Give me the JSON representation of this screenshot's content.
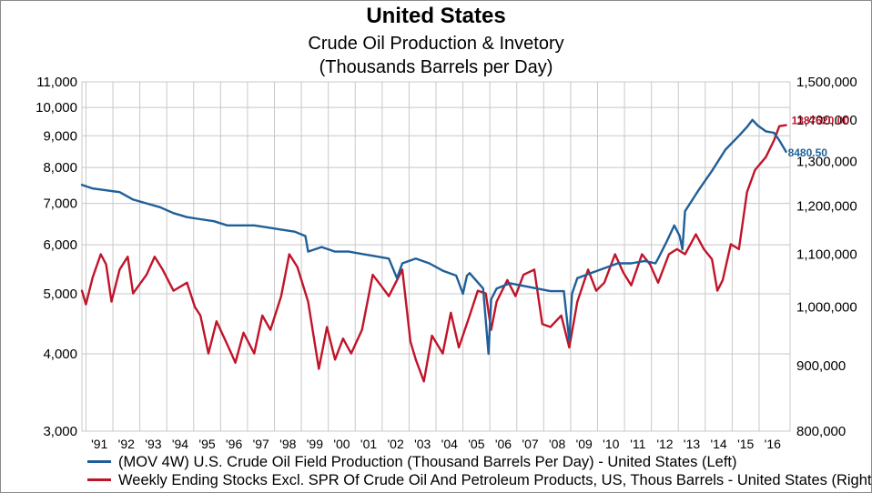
{
  "colors": {
    "production": "#1f5f99",
    "stocks": "#c0142a",
    "grid": "#c8c8c8",
    "axis": "#000000"
  },
  "chart_data": {
    "type": "line",
    "title": "United States",
    "subtitle_lines": [
      "Crude Oil Production & Invetory",
      "(Thousands Barrels per Day)"
    ],
    "grid": true,
    "legend_position": "bottom",
    "y_scale": "log",
    "y_left": {
      "range": [
        3000,
        11000
      ],
      "ticks": [
        3000,
        4000,
        5000,
        6000,
        7000,
        8000,
        9000,
        10000
      ],
      "tick_labels": [
        "3,000",
        "4,000",
        "5,000",
        "6,000",
        "7,000",
        "8,000",
        "9,000",
        "10,000"
      ],
      "top_label": "11,000"
    },
    "y_right": {
      "range": [
        800000,
        1500000
      ],
      "ticks": [
        800000,
        900000,
        1000000,
        1100000,
        1200000,
        1300000,
        1400000,
        1500000
      ],
      "tick_labels": [
        "800,000",
        "900,000",
        "1,000,000",
        "1,100,000",
        "1,200,000",
        "1,300,000",
        "1,400,000",
        "1,500,000"
      ]
    },
    "x_range": [
      1990.6,
      2016.9
    ],
    "x_tick_labels": [
      "'91",
      "'92",
      "'93",
      "'94",
      "'95",
      "'96",
      "'97",
      "'98",
      "'99",
      "'00",
      "'01",
      "'02",
      "'03",
      "'04",
      "'05",
      "'06",
      "'07",
      "'08",
      "'09",
      "'10",
      "'11",
      "'12",
      "'13",
      "'14",
      "'15",
      "'16"
    ],
    "series": [
      {
        "name": "(MOV 4W) U.S. Crude Oil Field Production (Thousand Barrels Per Day) - United States  (Left)",
        "axis": "left",
        "last_value_label": "8480.50",
        "x": [
          1990.6,
          1991.0,
          1991.5,
          1992.0,
          1992.5,
          1993.0,
          1993.5,
          1994.0,
          1994.5,
          1995.0,
          1995.5,
          1996.0,
          1996.5,
          1997.0,
          1997.5,
          1998.0,
          1998.5,
          1998.9,
          1999.0,
          1999.5,
          2000.0,
          2000.5,
          2001.0,
          2001.5,
          2002.0,
          2002.3,
          2002.5,
          2003.0,
          2003.5,
          2004.0,
          2004.5,
          2004.75,
          2004.9,
          2005.0,
          2005.5,
          2005.7,
          2005.8,
          2006.0,
          2006.5,
          2007.0,
          2007.5,
          2008.0,
          2008.5,
          2008.7,
          2008.8,
          2009.0,
          2009.5,
          2010.0,
          2010.5,
          2011.0,
          2011.5,
          2011.9,
          2012.0,
          2012.3,
          2012.6,
          2012.8,
          2012.9,
          2013.0,
          2013.5,
          2014.0,
          2014.5,
          2015.0,
          2015.3,
          2015.5,
          2015.7,
          2016.0,
          2016.3,
          2016.5,
          2016.75
        ],
        "values": [
          7500,
          7400,
          7350,
          7300,
          7100,
          7000,
          6900,
          6750,
          6650,
          6600,
          6550,
          6450,
          6450,
          6450,
          6400,
          6350,
          6300,
          6200,
          5850,
          5950,
          5850,
          5850,
          5800,
          5750,
          5700,
          5300,
          5600,
          5700,
          5600,
          5450,
          5350,
          5000,
          5350,
          5400,
          5100,
          4000,
          4900,
          5100,
          5200,
          5150,
          5100,
          5050,
          5050,
          4200,
          5000,
          5300,
          5400,
          5500,
          5600,
          5600,
          5650,
          5600,
          5700,
          6050,
          6450,
          6200,
          5900,
          6800,
          7350,
          7900,
          8550,
          9000,
          9300,
          9550,
          9350,
          9150,
          9100,
          8850,
          8480.5
        ]
      },
      {
        "name": "Weekly Ending Stocks Excl. SPR Of Crude Oil And Petroleum Products, US, Thous Barrels - United States (Right)",
        "axis": "right",
        "last_value_label": "1387620.00",
        "x": [
          1990.6,
          1990.75,
          1991.0,
          1991.3,
          1991.5,
          1991.7,
          1992.0,
          1992.3,
          1992.5,
          1993.0,
          1993.3,
          1993.6,
          1994.0,
          1994.5,
          1994.8,
          1995.0,
          1995.3,
          1995.6,
          1996.0,
          1996.3,
          1996.6,
          1997.0,
          1997.3,
          1997.6,
          1998.0,
          1998.3,
          1998.6,
          1999.0,
          1999.4,
          1999.7,
          2000.0,
          2000.3,
          2000.6,
          2001.0,
          2001.4,
          2001.7,
          2002.0,
          2002.5,
          2002.8,
          2003.0,
          2003.3,
          2003.6,
          2004.0,
          2004.3,
          2004.6,
          2005.0,
          2005.3,
          2005.6,
          2005.8,
          2006.0,
          2006.4,
          2006.7,
          2007.0,
          2007.4,
          2007.7,
          2008.0,
          2008.4,
          2008.7,
          2009.0,
          2009.4,
          2009.7,
          2010.0,
          2010.4,
          2010.7,
          2011.0,
          2011.4,
          2011.7,
          2012.0,
          2012.4,
          2012.7,
          2013.0,
          2013.4,
          2013.7,
          2014.0,
          2014.2,
          2014.4,
          2014.7,
          2015.0,
          2015.3,
          2015.6,
          2016.0,
          2016.3,
          2016.5,
          2016.75
        ],
        "values": [
          1030000,
          1005000,
          1055000,
          1100000,
          1080000,
          1010000,
          1070000,
          1095000,
          1025000,
          1060000,
          1095000,
          1070000,
          1030000,
          1045000,
          1000000,
          985000,
          920000,
          975000,
          935000,
          905000,
          955000,
          920000,
          985000,
          960000,
          1020000,
          1100000,
          1075000,
          1010000,
          895000,
          965000,
          910000,
          945000,
          920000,
          960000,
          1060000,
          1040000,
          1020000,
          1070000,
          940000,
          910000,
          875000,
          950000,
          920000,
          990000,
          930000,
          985000,
          1030000,
          1025000,
          960000,
          1010000,
          1050000,
          1020000,
          1060000,
          1070000,
          970000,
          965000,
          985000,
          930000,
          1010000,
          1070000,
          1030000,
          1045000,
          1100000,
          1065000,
          1040000,
          1100000,
          1080000,
          1045000,
          1100000,
          1110000,
          1100000,
          1140000,
          1110000,
          1090000,
          1030000,
          1050000,
          1120000,
          1110000,
          1230000,
          1280000,
          1310000,
          1350000,
          1385000,
          1387620
        ]
      }
    ]
  }
}
